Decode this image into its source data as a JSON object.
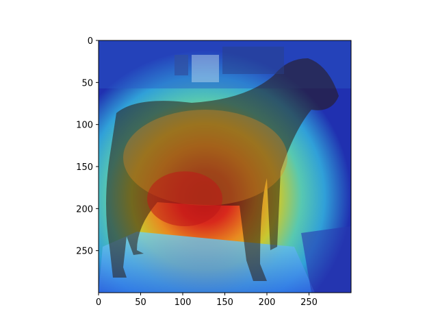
{
  "chart_data": {
    "type": "heatmap",
    "title": "",
    "xlabel": "",
    "ylabel": "",
    "xlim": [
      0,
      300
    ],
    "ylim": [
      300,
      0
    ],
    "x_ticks": [
      0,
      50,
      100,
      150,
      200,
      250
    ],
    "y_ticks": [
      0,
      50,
      100,
      150,
      200,
      250
    ],
    "colormap": "jet",
    "image_subject": "photograph of a dog overlaid with a class activation heatmap",
    "colors": {
      "hot": "#d8201a",
      "warm": "#e8a020",
      "mid": "#c8d030",
      "cool": "#40c8d0",
      "cold": "#2030b0"
    }
  }
}
